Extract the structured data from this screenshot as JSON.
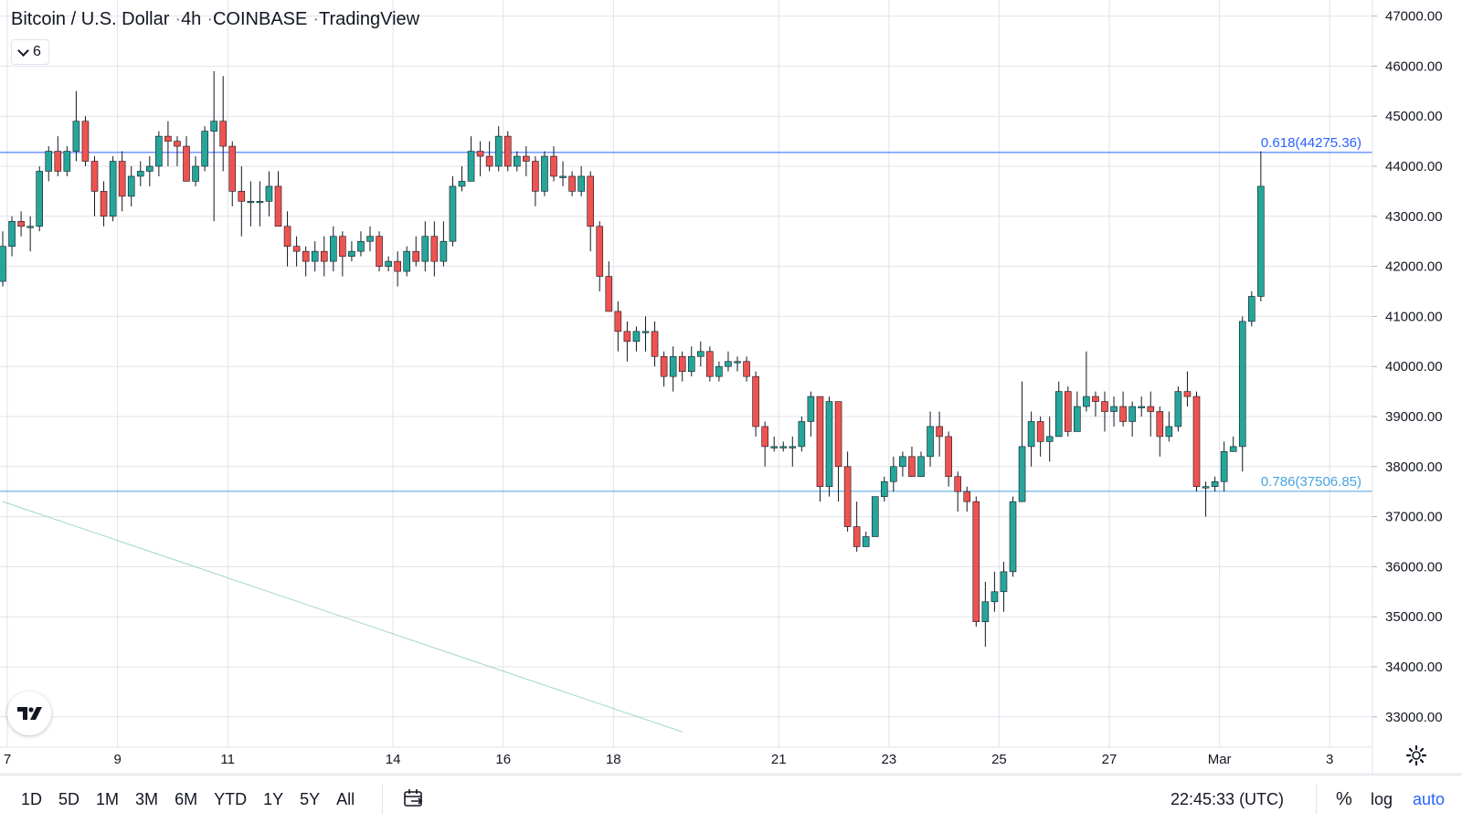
{
  "header": {
    "symbol": "Bitcoin / U.S. Dollar",
    "interval": "4h",
    "exchange": "COINBASE",
    "source": "TradingView",
    "indicator_count": "6"
  },
  "colors": {
    "up": "#26a69a",
    "down": "#ef5350",
    "grid": "#e0e3eb",
    "fib_0618": "#2962ff",
    "fib_0786": "#4aa3df",
    "trendline": "#a5d6c8",
    "text": "#131722"
  },
  "icons": {
    "logo": "tradingview-logo-icon",
    "calendar": "calendar-range-icon",
    "settings": "gear-icon",
    "toggle": "chevron-down-icon"
  },
  "bottom_bar": {
    "ranges": [
      "1D",
      "5D",
      "1M",
      "3M",
      "6M",
      "YTD",
      "1Y",
      "5Y",
      "All"
    ],
    "clock": "22:45:33 (UTC)",
    "percent_label": "%",
    "log_label": "log",
    "auto_label": "auto"
  },
  "chart_data": {
    "type": "candlestick",
    "title": "Bitcoin / U.S. Dollar · 4h · COINBASE",
    "ylim": [
      32700,
      47300
    ],
    "y_ticks": [
      33000,
      34000,
      35000,
      36000,
      37000,
      38000,
      39000,
      40000,
      41000,
      42000,
      43000,
      44000,
      45000,
      46000,
      47000
    ],
    "y_tick_labels": [
      "33000.00",
      "34000.00",
      "35000.00",
      "36000.00",
      "37000.00",
      "38000.00",
      "39000.00",
      "40000.00",
      "41000.00",
      "42000.00",
      "43000.00",
      "44000.00",
      "45000.00",
      "46000.00",
      "47000.00"
    ],
    "x_labels": [
      {
        "label": "7",
        "bar": 0.5
      },
      {
        "label": "9",
        "bar": 12.5
      },
      {
        "label": "11",
        "bar": 24.5
      },
      {
        "label": "14",
        "bar": 42.5
      },
      {
        "label": "16",
        "bar": 54.5
      },
      {
        "label": "18",
        "bar": 66.5
      },
      {
        "label": "21",
        "bar": 84.5
      },
      {
        "label": "23",
        "bar": 96.5
      },
      {
        "label": "25",
        "bar": 108.5
      },
      {
        "label": "27",
        "bar": 120.5
      },
      {
        "label": "Mar",
        "bar": 132.5
      },
      {
        "label": "3",
        "bar": 144.5
      }
    ],
    "fib_levels": [
      {
        "label": "0.618(44275.36)",
        "value": 44275.36
      },
      {
        "label": "0.786(37506.85)",
        "value": 37506.85
      }
    ],
    "trendline": {
      "from": {
        "bar": 0,
        "price": 37300
      },
      "to": {
        "bar": 74,
        "price": 32700
      }
    },
    "candles": [
      [
        41700,
        42400,
        41600,
        42700
      ],
      [
        42400,
        42900,
        42200,
        43000
      ],
      [
        42900,
        42800,
        42600,
        43100
      ],
      [
        42800,
        42800,
        42300,
        43000
      ],
      [
        42800,
        43900,
        42700,
        44000
      ],
      [
        43900,
        44300,
        43700,
        44400
      ],
      [
        44300,
        43900,
        43800,
        44600
      ],
      [
        43900,
        44300,
        43800,
        44400
      ],
      [
        44300,
        44900,
        44100,
        45500
      ],
      [
        44900,
        44100,
        44000,
        45000
      ],
      [
        44100,
        43500,
        43000,
        44200
      ],
      [
        43500,
        43000,
        42800,
        43700
      ],
      [
        43000,
        44100,
        42900,
        44200
      ],
      [
        44100,
        43400,
        43100,
        44300
      ],
      [
        43400,
        43800,
        43200,
        44000
      ],
      [
        43800,
        43900,
        43600,
        44100
      ],
      [
        43900,
        44000,
        43600,
        44200
      ],
      [
        44000,
        44600,
        43800,
        44700
      ],
      [
        44600,
        44500,
        44000,
        44900
      ],
      [
        44500,
        44400,
        44000,
        44600
      ],
      [
        44400,
        43700,
        43700,
        44600
      ],
      [
        43700,
        44000,
        43600,
        44200
      ],
      [
        44000,
        44700,
        43900,
        44800
      ],
      [
        44700,
        44900,
        42900,
        45900
      ],
      [
        44900,
        44400,
        43900,
        45800
      ],
      [
        44400,
        43500,
        43200,
        44500
      ],
      [
        43500,
        43300,
        42600,
        44000
      ],
      [
        43300,
        43300,
        42800,
        43700
      ],
      [
        43300,
        43300,
        42800,
        43700
      ],
      [
        43300,
        43600,
        43000,
        43900
      ],
      [
        43600,
        42800,
        42800,
        43900
      ],
      [
        42800,
        42400,
        42000,
        43100
      ],
      [
        42400,
        42300,
        42000,
        42600
      ],
      [
        42300,
        42100,
        41800,
        42400
      ],
      [
        42100,
        42300,
        41900,
        42500
      ],
      [
        42300,
        42100,
        41800,
        42600
      ],
      [
        42100,
        42600,
        41900,
        42800
      ],
      [
        42600,
        42200,
        41800,
        42700
      ],
      [
        42200,
        42300,
        42100,
        42500
      ],
      [
        42300,
        42500,
        42200,
        42700
      ],
      [
        42500,
        42600,
        42300,
        42800
      ],
      [
        42600,
        42000,
        41900,
        42700
      ],
      [
        42000,
        42100,
        41900,
        42200
      ],
      [
        42100,
        41900,
        41600,
        42300
      ],
      [
        41900,
        42300,
        41800,
        42400
      ],
      [
        42300,
        42100,
        42000,
        42600
      ],
      [
        42100,
        42600,
        41900,
        42900
      ],
      [
        42600,
        42100,
        41800,
        42900
      ],
      [
        42100,
        42500,
        42000,
        42900
      ],
      [
        42500,
        43600,
        42400,
        43800
      ],
      [
        43600,
        43700,
        43500,
        44000
      ],
      [
        43700,
        44300,
        43700,
        44600
      ],
      [
        44300,
        44200,
        43800,
        44500
      ],
      [
        44200,
        44000,
        43900,
        44500
      ],
      [
        44000,
        44600,
        43900,
        44800
      ],
      [
        44600,
        44000,
        43900,
        44700
      ],
      [
        44000,
        44200,
        43900,
        44300
      ],
      [
        44200,
        44100,
        43800,
        44400
      ],
      [
        44100,
        43500,
        43200,
        44200
      ],
      [
        43500,
        44200,
        43400,
        44300
      ],
      [
        44200,
        43800,
        43700,
        44400
      ],
      [
        43800,
        43800,
        43600,
        44100
      ],
      [
        43800,
        43500,
        43400,
        43900
      ],
      [
        43500,
        43800,
        43400,
        44000
      ],
      [
        43800,
        42800,
        42300,
        43900
      ],
      [
        42800,
        41800,
        41500,
        42900
      ],
      [
        41800,
        41100,
        41100,
        42100
      ],
      [
        41100,
        40700,
        40300,
        41300
      ],
      [
        40700,
        40500,
        40100,
        40900
      ],
      [
        40500,
        40700,
        40300,
        40800
      ],
      [
        40700,
        40700,
        40300,
        41000
      ],
      [
        40700,
        40200,
        40000,
        40900
      ],
      [
        40200,
        39800,
        39600,
        40300
      ],
      [
        39800,
        40200,
        39500,
        40400
      ],
      [
        40200,
        39900,
        39700,
        40300
      ],
      [
        39900,
        40200,
        39800,
        40400
      ],
      [
        40200,
        40300,
        40000,
        40500
      ],
      [
        40300,
        39800,
        39700,
        40400
      ],
      [
        39800,
        40000,
        39700,
        40100
      ],
      [
        40000,
        40100,
        39900,
        40300
      ],
      [
        40100,
        40100,
        39900,
        40200
      ],
      [
        40100,
        39800,
        39700,
        40200
      ],
      [
        39800,
        38800,
        38600,
        39900
      ],
      [
        38800,
        38400,
        38000,
        38900
      ],
      [
        38400,
        38400,
        38300,
        38600
      ],
      [
        38400,
        38400,
        38300,
        38500
      ],
      [
        38400,
        38400,
        38000,
        38600
      ],
      [
        38400,
        38900,
        38300,
        39000
      ],
      [
        38900,
        39400,
        38600,
        39500
      ],
      [
        39400,
        37600,
        37300,
        39400
      ],
      [
        37600,
        39300,
        37400,
        39400
      ],
      [
        39300,
        38000,
        37300,
        39300
      ],
      [
        38000,
        36800,
        36700,
        38300
      ],
      [
        36800,
        36400,
        36300,
        37300
      ],
      [
        36400,
        36600,
        36500,
        36700
      ],
      [
        36600,
        37400,
        36600,
        37400
      ],
      [
        37400,
        37700,
        37300,
        37800
      ],
      [
        37700,
        38000,
        37500,
        38200
      ],
      [
        38000,
        38200,
        37800,
        38300
      ],
      [
        38200,
        37800,
        37800,
        38400
      ],
      [
        37800,
        38200,
        37800,
        38300
      ],
      [
        38200,
        38800,
        38000,
        39100
      ],
      [
        38800,
        38600,
        38200,
        39100
      ],
      [
        38600,
        37800,
        37600,
        38700
      ],
      [
        37800,
        37500,
        37100,
        37900
      ],
      [
        37500,
        37300,
        37100,
        37600
      ],
      [
        37300,
        34900,
        34800,
        37400
      ],
      [
        34900,
        35300,
        34400,
        35700
      ],
      [
        35300,
        35500,
        35100,
        35900
      ],
      [
        35500,
        35900,
        35100,
        36100
      ],
      [
        35900,
        37300,
        35800,
        37400
      ],
      [
        37300,
        38400,
        37300,
        39700
      ],
      [
        38400,
        38900,
        38000,
        39100
      ],
      [
        38900,
        38500,
        38200,
        39000
      ],
      [
        38500,
        38600,
        38100,
        39000
      ],
      [
        38600,
        39500,
        38600,
        39700
      ],
      [
        39500,
        38700,
        38600,
        39600
      ],
      [
        38700,
        39200,
        38700,
        39500
      ],
      [
        39200,
        39400,
        39100,
        40300
      ],
      [
        39400,
        39300,
        39000,
        39500
      ],
      [
        39300,
        39100,
        38700,
        39500
      ],
      [
        39100,
        39200,
        38800,
        39400
      ],
      [
        39200,
        38900,
        38800,
        39500
      ],
      [
        38900,
        39200,
        38600,
        39300
      ],
      [
        39200,
        39200,
        39000,
        39400
      ],
      [
        39200,
        39100,
        38600,
        39500
      ],
      [
        39100,
        38600,
        38200,
        39200
      ],
      [
        38600,
        38800,
        38500,
        39100
      ],
      [
        38800,
        39500,
        38700,
        39600
      ],
      [
        39500,
        39400,
        39200,
        39900
      ],
      [
        39400,
        37600,
        37500,
        39500
      ],
      [
        37600,
        37600,
        37000,
        37700
      ],
      [
        37600,
        37700,
        37500,
        37800
      ],
      [
        37700,
        38300,
        37500,
        38500
      ],
      [
        38300,
        38400,
        38300,
        38600
      ],
      [
        38400,
        40900,
        37900,
        41000
      ],
      [
        40900,
        41400,
        40800,
        41500
      ],
      [
        41400,
        43600,
        41300,
        44300
      ]
    ]
  }
}
